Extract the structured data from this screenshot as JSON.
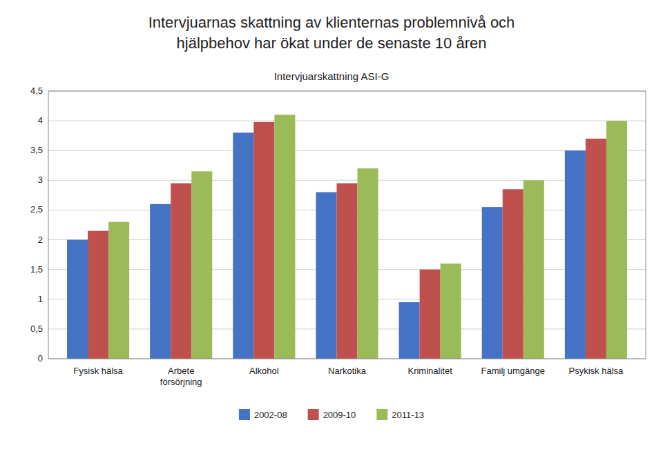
{
  "chart_data": {
    "type": "bar",
    "title": "Intervjuarnas skattning av klienternas problemnivå och\nhjälpbehov har ökat under de senaste 10 åren",
    "subtitle": "Intervjuarskattning ASI-G",
    "categories": [
      "Fysisk hälsa",
      "Arbete\nförsörjning",
      "Alkohol",
      "Narkotika",
      "Kriminalitet",
      "Familj umgänge",
      "Psykisk hälsa"
    ],
    "series": [
      {
        "name": "2002-08",
        "color": "#4472C4",
        "values": [
          2.0,
          2.6,
          3.8,
          2.8,
          0.95,
          2.55,
          3.5
        ]
      },
      {
        "name": "2009-10",
        "color": "#C0504D",
        "values": [
          2.15,
          2.95,
          3.98,
          2.95,
          1.5,
          2.85,
          3.7
        ]
      },
      {
        "name": "2011-13",
        "color": "#9BBB59",
        "values": [
          2.3,
          3.15,
          4.1,
          3.2,
          1.6,
          3.0,
          4.0
        ]
      }
    ],
    "ylim": [
      0,
      4.5
    ],
    "yticks": [
      0,
      {
        "value": 0.5,
        "label": "0,5"
      },
      1,
      {
        "value": 1.5,
        "label": "1,5"
      },
      2,
      {
        "value": 2.5,
        "label": "2,5"
      },
      3,
      {
        "value": 3.5,
        "label": "3,5"
      },
      4,
      {
        "value": 4.5,
        "label": "4,5"
      }
    ],
    "grid": true,
    "legend": "bottom"
  }
}
